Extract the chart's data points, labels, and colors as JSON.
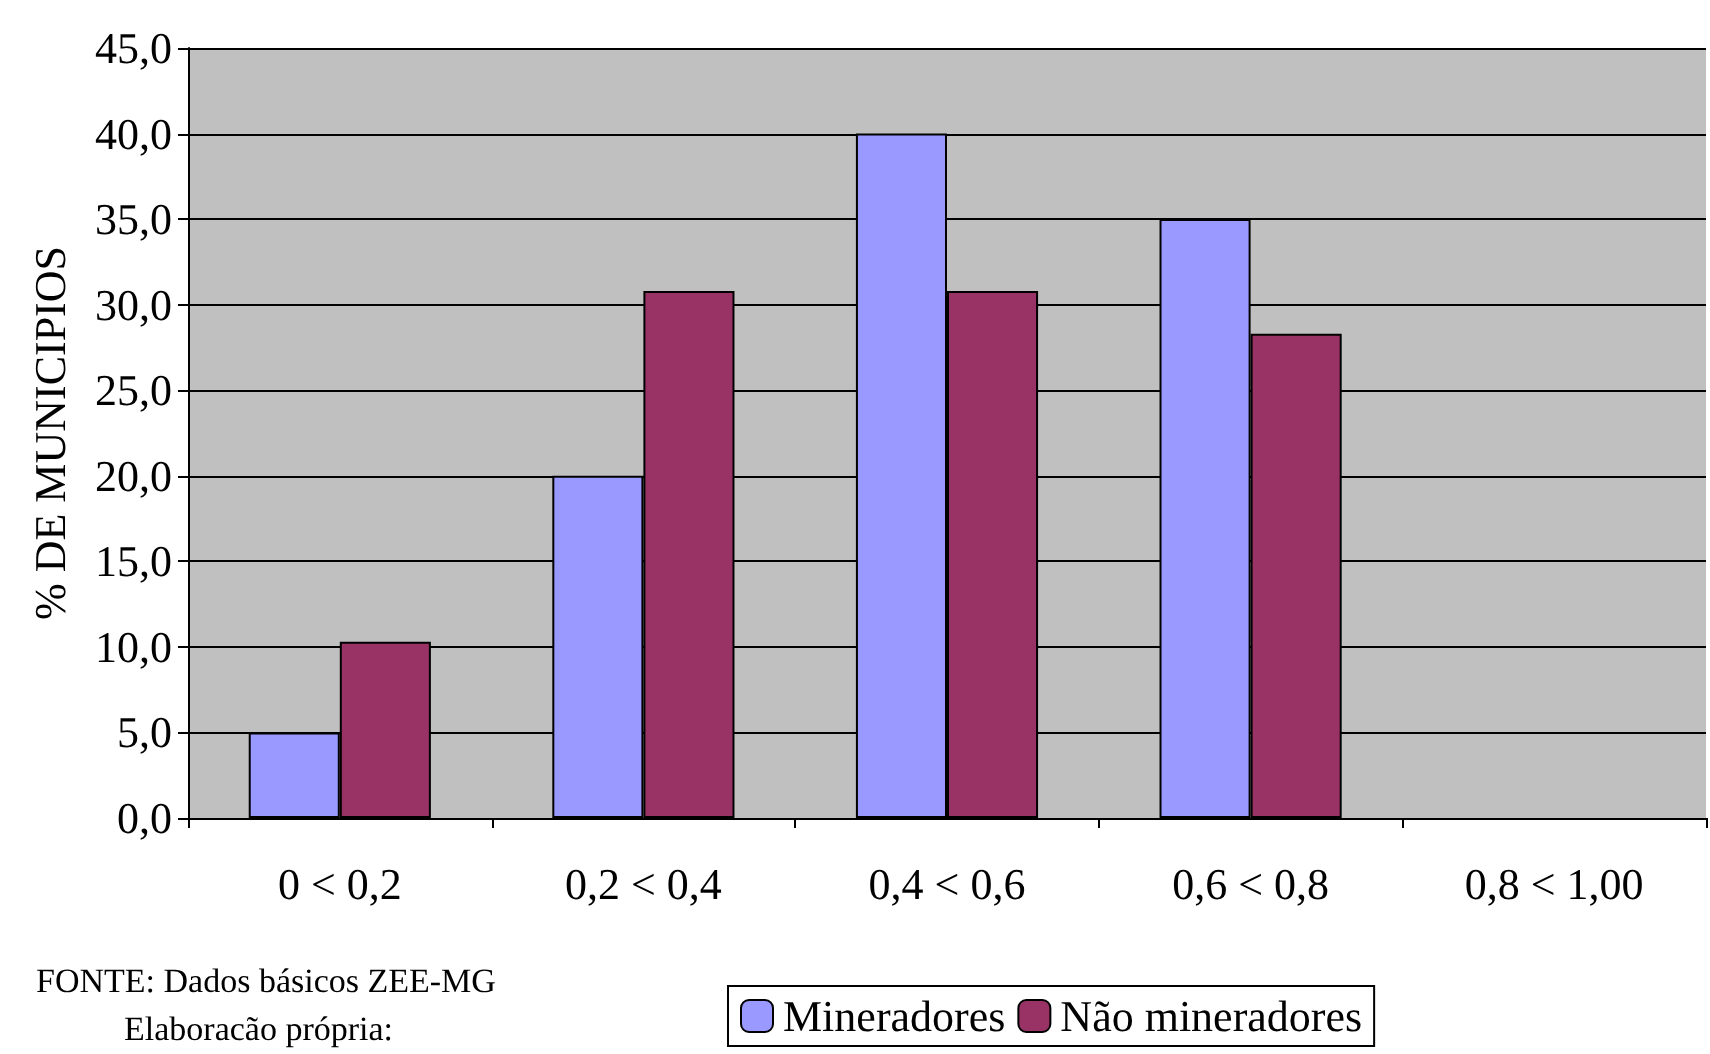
{
  "chart_data": {
    "type": "bar",
    "ylabel": "% DE MUNICIPIOS",
    "categories": [
      "0 < 0,2",
      "0,2 < 0,4",
      "0,4 < 0,6",
      "0,6 < 0,8",
      "0,8 < 1,00"
    ],
    "series": [
      {
        "name": "Mineradores",
        "color": "#9999ff",
        "values": [
          5.0,
          20.0,
          40.0,
          35.0,
          null
        ]
      },
      {
        "name": "Não mineradores",
        "color": "#993366",
        "values": [
          10.3,
          30.8,
          30.8,
          28.3,
          null
        ]
      }
    ],
    "ylim": [
      0,
      45
    ],
    "yticks": [
      {
        "value": 0,
        "label": "0,0"
      },
      {
        "value": 5,
        "label": "5,0"
      },
      {
        "value": 10,
        "label": "10,0"
      },
      {
        "value": 15,
        "label": "15,0"
      },
      {
        "value": 20,
        "label": "20,0"
      },
      {
        "value": 25,
        "label": "25,0"
      },
      {
        "value": 30,
        "label": "30,0"
      },
      {
        "value": 35,
        "label": "35,0"
      },
      {
        "value": 40,
        "label": "40,0"
      },
      {
        "value": 45,
        "label": "45,0"
      }
    ],
    "grid": "y",
    "legend": "bottom",
    "annotations": [
      "FONTE: Dados básicos ZEE-MG",
      "Elaboracão própria:"
    ]
  }
}
